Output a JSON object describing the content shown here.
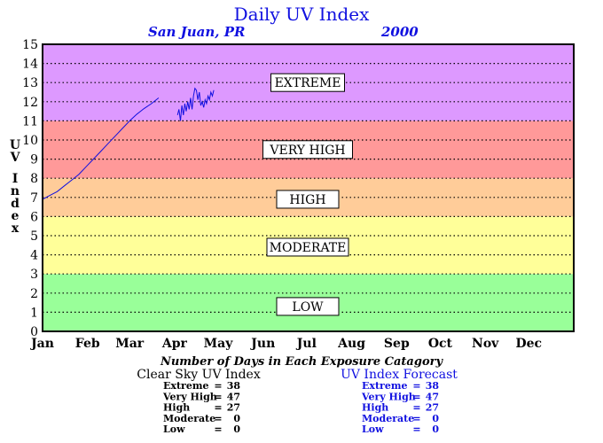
{
  "chart_data": {
    "type": "line",
    "title": "Daily UV Index",
    "subtitle_location": "San Juan, PR",
    "subtitle_year": "2000",
    "ylabel": "UV Index",
    "xlabel": "",
    "ylim": [
      0,
      15
    ],
    "xlim": [
      0,
      366
    ],
    "yticks": [
      "0",
      "1",
      "2",
      "3",
      "4",
      "5",
      "6",
      "7",
      "8",
      "9",
      "10",
      "11",
      "12",
      "13",
      "14",
      "15"
    ],
    "xticks": [
      {
        "label": "Jan",
        "day": 0
      },
      {
        "label": "Feb",
        "day": 31
      },
      {
        "label": "Mar",
        "day": 60
      },
      {
        "label": "Apr",
        "day": 91
      },
      {
        "label": "May",
        "day": 121
      },
      {
        "label": "Jun",
        "day": 152
      },
      {
        "label": "Jul",
        "day": 182
      },
      {
        "label": "Aug",
        "day": 213
      },
      {
        "label": "Sep",
        "day": 244
      },
      {
        "label": "Oct",
        "day": 274
      },
      {
        "label": "Nov",
        "day": 305
      },
      {
        "label": "Dec",
        "day": 335
      }
    ],
    "grid": true,
    "bands": [
      {
        "name": "LOW",
        "from": 0,
        "to": 3,
        "color": "#99ff99"
      },
      {
        "name": "MODERATE",
        "from": 3,
        "to": 6,
        "color": "#ffff99"
      },
      {
        "name": "HIGH",
        "from": 6,
        "to": 8,
        "color": "#ffcc99"
      },
      {
        "name": "VERY HIGH",
        "from": 8,
        "to": 11,
        "color": "#ff9999"
      },
      {
        "name": "EXTREME",
        "from": 11,
        "to": 15,
        "color": "#dd99ff"
      }
    ],
    "band_label_values": [
      {
        "name": "EXTREME",
        "y": 13.0
      },
      {
        "name": "VERY HIGH",
        "y": 9.5
      },
      {
        "name": "HIGH",
        "y": 6.9
      },
      {
        "name": "MODERATE",
        "y": 4.4
      },
      {
        "name": "LOW",
        "y": 1.3
      }
    ],
    "series": [
      {
        "color": "#1010e0",
        "x": [
          0,
          5,
          10,
          15,
          20,
          25,
          30,
          35,
          40,
          45,
          50,
          55,
          60,
          65,
          70,
          75,
          80
        ],
        "y": [
          6.9,
          7.1,
          7.3,
          7.6,
          7.9,
          8.2,
          8.6,
          9.0,
          9.4,
          9.8,
          10.2,
          10.6,
          11.0,
          11.35,
          11.65,
          11.9,
          12.2
        ]
      },
      {
        "color": "#1010e0",
        "x": [
          93,
          94,
          95,
          96,
          97,
          98,
          99,
          100,
          101,
          102,
          103,
          104,
          105,
          106,
          107,
          108,
          109,
          110,
          111,
          112,
          113,
          114,
          115,
          116,
          117,
          118
        ],
        "y": [
          11.3,
          11.6,
          11.0,
          11.8,
          11.3,
          11.9,
          11.5,
          12.0,
          11.6,
          12.2,
          11.6,
          12.3,
          12.7,
          12.6,
          12.1,
          12.5,
          11.8,
          12.0,
          11.7,
          12.1,
          11.9,
          12.3,
          12.1,
          12.5,
          12.3,
          12.6
        ]
      }
    ],
    "table_title": "Number of Days in Each Exposure Catagory",
    "tables": [
      {
        "heading": "Clear Sky UV Index",
        "color": "#000000",
        "rows": [
          {
            "label": "Extreme",
            "eq": "=",
            "value": "38"
          },
          {
            "label": "Very High",
            "eq": "=",
            "value": "47"
          },
          {
            "label": "High",
            "eq": "=",
            "value": "27"
          },
          {
            "label": "Moderate",
            "eq": "=",
            "value": "0"
          },
          {
            "label": "Low",
            "eq": "=",
            "value": "0"
          }
        ]
      },
      {
        "heading": "UV Index Forecast",
        "color": "#1010e0",
        "rows": [
          {
            "label": "Extreme",
            "eq": "=",
            "value": "38"
          },
          {
            "label": "Very High",
            "eq": "=",
            "value": "47"
          },
          {
            "label": "High",
            "eq": "=",
            "value": "27"
          },
          {
            "label": "Moderate",
            "eq": "=",
            "value": "0"
          },
          {
            "label": "Low",
            "eq": "=",
            "value": "0"
          }
        ]
      }
    ]
  }
}
